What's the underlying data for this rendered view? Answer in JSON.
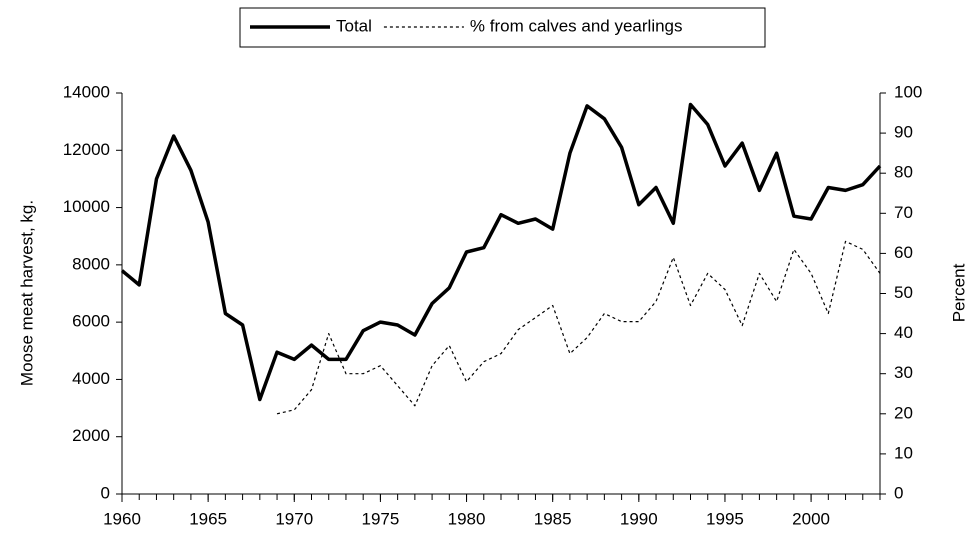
{
  "chart_data": {
    "type": "line",
    "ylabel": "Moose meat harvest, kg.",
    "y2label": "Percent",
    "legend": "top",
    "x": [
      1960,
      1961,
      1962,
      1963,
      1964,
      1965,
      1966,
      1967,
      1968,
      1969,
      1970,
      1971,
      1972,
      1973,
      1974,
      1975,
      1976,
      1977,
      1978,
      1979,
      1980,
      1981,
      1982,
      1983,
      1984,
      1985,
      1986,
      1987,
      1988,
      1989,
      1990,
      1991,
      1992,
      1993,
      1994,
      1995,
      1996,
      1997,
      1998,
      1999,
      2000,
      2001,
      2002,
      2003,
      2004
    ],
    "xlim": [
      1960,
      2004
    ],
    "xticks": [
      1960,
      1965,
      1970,
      1975,
      1980,
      1985,
      1990,
      1995,
      2000
    ],
    "ylim": [
      0,
      14000
    ],
    "yticks": [
      0,
      2000,
      4000,
      6000,
      8000,
      10000,
      12000,
      14000
    ],
    "y2lim": [
      0,
      100
    ],
    "y2ticks": [
      0,
      10,
      20,
      30,
      40,
      50,
      60,
      70,
      80,
      90,
      100
    ],
    "series": [
      {
        "name": "Total",
        "color": "#000000",
        "style": "solid",
        "values": [
          7800,
          7300,
          11000,
          12500,
          11300,
          9500,
          6300,
          5900,
          3300,
          4950,
          4700,
          5200,
          4700,
          4700,
          5700,
          6000,
          5900,
          5550,
          6650,
          7200,
          8450,
          8600,
          9750,
          9450,
          9600,
          9250,
          11900,
          13550,
          13100,
          12100,
          10100,
          10700,
          9450,
          13600,
          12900,
          11450,
          12250,
          10600,
          11900,
          9700,
          9600,
          10700,
          10600,
          10800,
          11450
        ]
      },
      {
        "name": "% from calves and yearlings",
        "color": "#000000",
        "style": "dotted",
        "axis": "y2",
        "values": [
          null,
          null,
          null,
          null,
          null,
          null,
          null,
          null,
          null,
          20,
          21,
          26,
          40,
          30,
          30,
          32,
          27,
          22,
          32,
          37,
          28,
          33,
          35,
          41,
          44,
          47,
          35,
          39,
          45,
          43,
          43,
          48,
          59,
          47,
          55,
          51,
          42,
          55,
          48,
          61,
          55,
          45,
          63,
          61,
          55
        ]
      }
    ]
  }
}
